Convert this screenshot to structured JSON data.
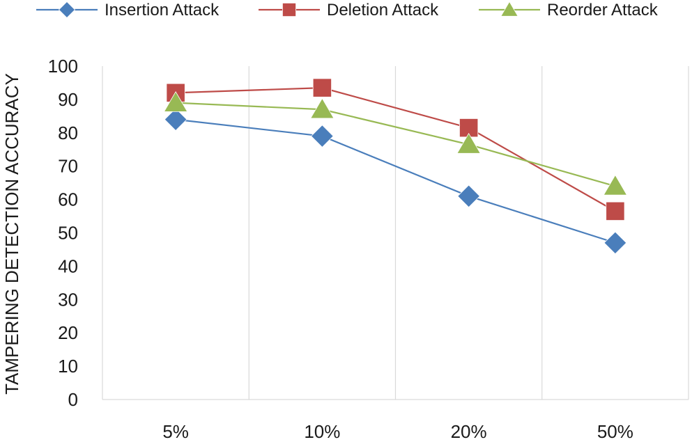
{
  "chart_data": {
    "type": "line",
    "categories": [
      "5%",
      "10%",
      "20%",
      "50%"
    ],
    "ylabel": "TAMPERING DETECTION ACCURACY",
    "xlabel": "",
    "ylim": [
      0,
      100
    ],
    "yticks": [
      0,
      10,
      20,
      30,
      40,
      50,
      60,
      70,
      80,
      90,
      100
    ],
    "grid": "vertical",
    "legend_position": "top",
    "series": [
      {
        "name": "Insertion Attack",
        "values": [
          84,
          79,
          61,
          47
        ],
        "color": "#4a7ebb",
        "marker": "diamond"
      },
      {
        "name": "Deletion Attack",
        "values": [
          92,
          93.5,
          81.5,
          56.5
        ],
        "color": "#be4b48",
        "marker": "square"
      },
      {
        "name": "Reorder Attack",
        "values": [
          89,
          87,
          76.5,
          64
        ],
        "color": "#98b954",
        "marker": "triangle"
      }
    ]
  }
}
